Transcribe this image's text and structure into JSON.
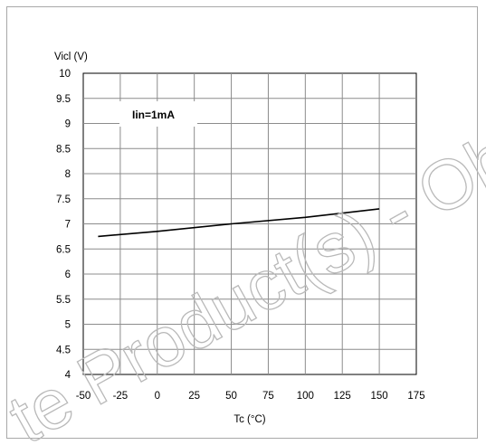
{
  "chart_data": {
    "type": "line",
    "title": "",
    "xlabel": "Tc (°C)",
    "ylabel": "Vicl (V)",
    "xlim": [
      -50,
      175
    ],
    "ylim": [
      4,
      10
    ],
    "x_ticks": [
      "-50",
      "-25",
      "0",
      "25",
      "50",
      "75",
      "100",
      "125",
      "150",
      "175"
    ],
    "y_ticks": [
      "4",
      "4.5",
      "5",
      "5.5",
      "6",
      "6.5",
      "7",
      "7.5",
      "8",
      "8.5",
      "9",
      "9.5",
      "10"
    ],
    "grid": true,
    "annotation": "Iin=1mA",
    "series": [
      {
        "x": [
          -40,
          0,
          50,
          100,
          150
        ],
        "y": [
          6.75,
          6.85,
          7.0,
          7.13,
          7.3
        ],
        "color": "#000000"
      }
    ]
  },
  "watermark": {
    "text": "te Product(s) - Obs"
  }
}
